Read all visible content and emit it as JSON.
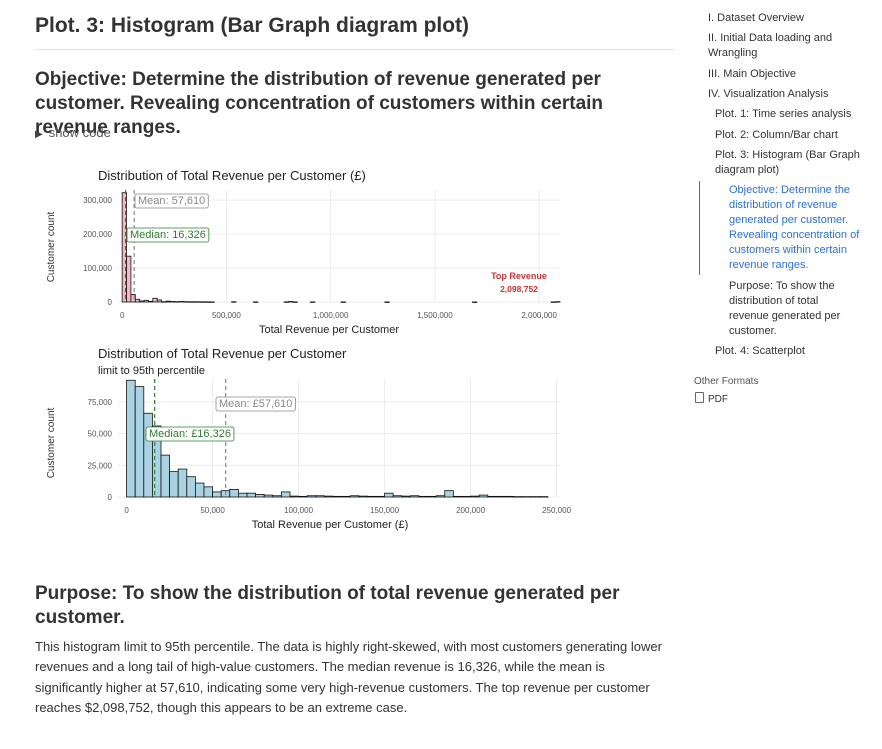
{
  "page": {
    "title": "Plot. 3: Histogram (Bar Graph diagram plot)",
    "objective": "Objective: Determine the distribution of revenue generated per customer. Revealing concentration of customers within certain revenue ranges.",
    "show_code": "show code",
    "purpose_heading": "Purpose: To show the distribution of total revenue generated per customer.",
    "paragraph": "This histogram limit to 95th percentile. The data is highly right-skewed, with most customers generating lower revenues and a long tail of high-value customers. The median revenue is 16,326, while the mean is significantly higher at 57,610, indicating some very high-revenue customers. The top revenue per customer reaches $2,098,752, though this appears to be an extreme case."
  },
  "toc": {
    "items": [
      {
        "label": "I. Dataset Overview"
      },
      {
        "label": "II. Initial Data loading and Wrangling"
      },
      {
        "label": "III. Main Objective"
      },
      {
        "label": "IV. Visualization Analysis"
      },
      {
        "label": "Plot. 1: Time series analysis"
      },
      {
        "label": "Plot. 2: Column/Bar chart"
      },
      {
        "label": "Plot. 3: Histogram (Bar Graph diagram plot)"
      },
      {
        "label": "Objective: Determine the distribution of revenue generated per customer. Revealing concentration of customers within certain revenue ranges."
      },
      {
        "label": "Purpose: To show the distribution of total revenue generated per customer."
      },
      {
        "label": "Plot. 4: Scatterplot"
      }
    ],
    "other_formats": "Other Formats",
    "pdf": "PDF",
    "active_color": "#2a6fdb"
  },
  "chart_data": [
    {
      "type": "bar",
      "title": "Distribution of Total Revenue per Customer (£)",
      "xlabel": "Total Revenue per Customer",
      "ylabel": "Customer count",
      "xlim": [
        -20000,
        2100000
      ],
      "ylim": [
        0,
        330000
      ],
      "x_ticks": [
        0,
        500000,
        1000000,
        1500000,
        2000000
      ],
      "x_tick_labels": [
        "0",
        "500,000",
        "1,000,000",
        "1,500,000",
        "2,000,000"
      ],
      "y_ticks": [
        0,
        100000,
        200000,
        300000
      ],
      "y_tick_labels": [
        "0",
        "100,000",
        "200,000",
        "300,000"
      ],
      "bin_width": 21000,
      "bins_x": [
        0,
        21000,
        42000,
        63000,
        84000,
        105000,
        126000,
        147000,
        168000,
        189000,
        210000,
        231000,
        252000,
        273000,
        294000,
        315000,
        336000,
        357000,
        378000,
        399000,
        420000,
        525000,
        630000,
        777000,
        798000,
        819000,
        903000,
        1050000,
        1260000,
        1680000,
        2058000,
        2079000
      ],
      "bins_y": [
        322000,
        135000,
        22000,
        8000,
        3000,
        5000,
        2000,
        11000,
        6000,
        1000,
        2500,
        1500,
        1000,
        1500,
        1000,
        800,
        800,
        700,
        600,
        500,
        400,
        800,
        300,
        500,
        1500,
        300,
        400,
        300,
        200,
        100,
        300,
        1000
      ],
      "fill": "#f4b9c3",
      "mean": 57610,
      "median": 16326,
      "mean_label": "Mean: 57,610",
      "median_label": "Median: 16,326",
      "top_label": "Top Revenue",
      "top_value_label": "2,098,752",
      "top_value": 2098752
    },
    {
      "type": "bar",
      "title": "Distribution of Total Revenue per Customer",
      "subtitle": "limit to 95th percentile",
      "xlabel": "Total Revenue per Customer (£)",
      "ylabel": "Customer count",
      "xlim": [
        -5000,
        252000
      ],
      "ylim": [
        0,
        93000
      ],
      "x_ticks": [
        0,
        50000,
        100000,
        150000,
        200000,
        250000
      ],
      "x_tick_labels": [
        "0",
        "50,000",
        "100,000",
        "150,000",
        "200,000",
        "250,000"
      ],
      "y_ticks": [
        0,
        25000,
        50000,
        75000
      ],
      "y_tick_labels": [
        "0",
        "25,000",
        "50,000",
        "75,000"
      ],
      "bin_width": 5000,
      "bins_x": [
        2500,
        7500,
        12500,
        17500,
        22500,
        27500,
        32500,
        37500,
        42500,
        47500,
        52500,
        57500,
        62500,
        67500,
        72500,
        77500,
        82500,
        87500,
        92500,
        97500,
        102500,
        107500,
        112500,
        117500,
        122500,
        127500,
        132500,
        137500,
        142500,
        147500,
        152500,
        157500,
        162500,
        167500,
        172500,
        177500,
        182500,
        187500,
        192500,
        197500,
        202500,
        207500,
        212500,
        217500,
        222500,
        227500,
        232500,
        237500,
        242500
      ],
      "bins_y": [
        92000,
        87000,
        66000,
        56000,
        33000,
        20000,
        22000,
        16000,
        11000,
        8000,
        4000,
        5000,
        6000,
        3000,
        3000,
        2000,
        1500,
        1000,
        4000,
        700,
        500,
        1000,
        1000,
        700,
        500,
        500,
        1000,
        700,
        500,
        500,
        3000,
        1000,
        700,
        1000,
        500,
        500,
        1000,
        5000,
        500,
        500,
        700,
        1500,
        500,
        500,
        500,
        300,
        300,
        300,
        300
      ],
      "fill": "#a9d3e3",
      "mean": 57610,
      "median": 16326,
      "mean_label": "Mean: £57,610",
      "median_label": "Median: £16,326"
    }
  ]
}
